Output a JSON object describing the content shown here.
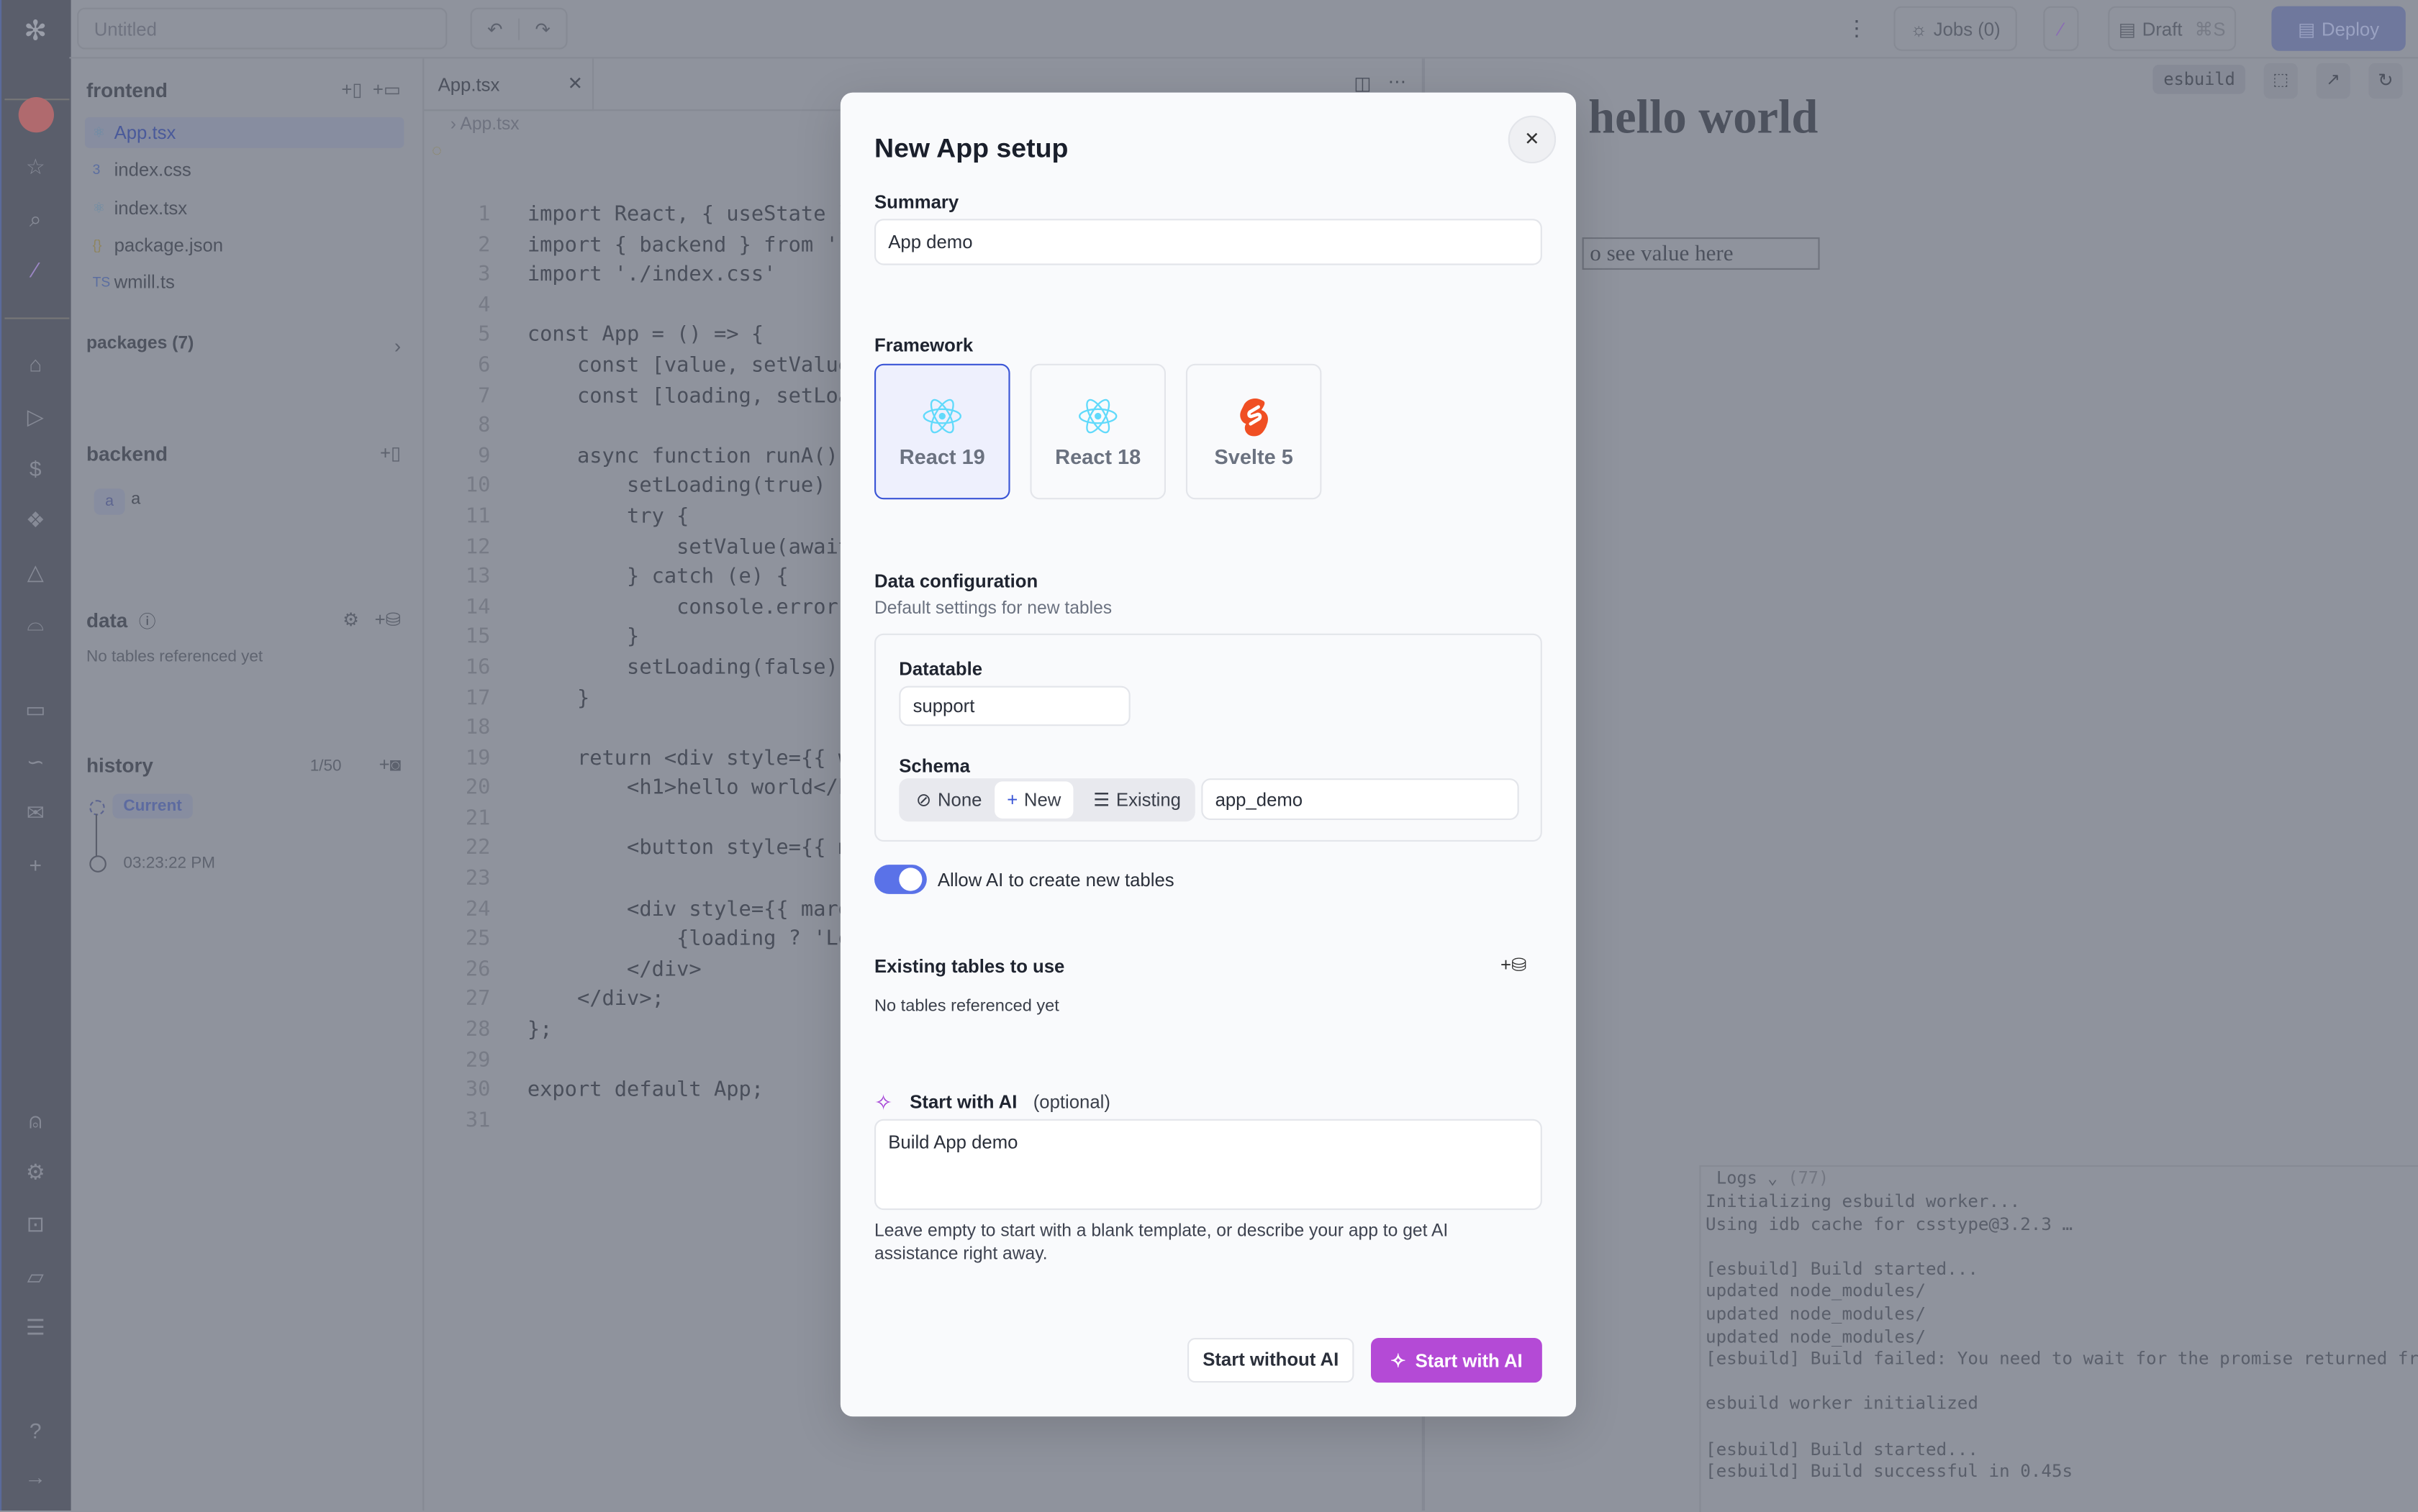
{
  "topbar": {
    "title_placeholder": "Untitled",
    "jobs_label": "Jobs (0)",
    "draft_label": "Draft",
    "draft_shortcut": "⌘S",
    "deploy_label": "Deploy"
  },
  "files": {
    "frontend_title": "frontend",
    "items": [
      {
        "name": "App.tsx",
        "icon": "react-icon",
        "active": true
      },
      {
        "name": "index.css",
        "icon": "css-icon"
      },
      {
        "name": "index.tsx",
        "icon": "react-icon"
      },
      {
        "name": "package.json",
        "icon": "json-icon"
      },
      {
        "name": "wmill.ts",
        "icon": "typescript-icon"
      }
    ],
    "packages_label": "packages (7)",
    "backend_title": "backend",
    "backend_item_badge": "a",
    "backend_item_name": "a",
    "data_title": "data",
    "data_empty": "No tables referenced yet",
    "history_title": "history",
    "history_count": "1/50",
    "history_current": "Current",
    "history_time": "03:23:22 PM"
  },
  "editor": {
    "tab_label": "App.tsx",
    "breadcrumb": "App.tsx",
    "lines": [
      "import React, { useState }",
      "import { backend } from '.",
      "import './index.css'",
      "",
      "const App = () => {",
      "    const [value, setValue",
      "    const [loading, setLoa",
      "",
      "    async function runA()",
      "        setLoading(true)",
      "        try {",
      "            setValue(await",
      "        } catch (e) {",
      "            console.error(",
      "        }",
      "        setLoading(false)",
      "    }",
      "",
      "    return <div style={{ w",
      "        <h1>hello world</h",
      "",
      "        <button style={{ m",
      "",
      "        <div style={{ marg",
      "            {loading ? 'Lo",
      "        </div>",
      "    </div>;",
      "};",
      "",
      "export default App;",
      ""
    ]
  },
  "preview": {
    "bundler_label": "esbuild",
    "heading": "hello world",
    "button_text": "o see value here",
    "logs_label": "Logs",
    "logs_count": "(77)",
    "logs": [
      "Initializing esbuild worker...",
      "Using idb cache for csstype@3.2.3 …",
      "",
      "[esbuild] Build started...",
      "updated node_modules/",
      "updated node_modules/",
      "updated node_modules/",
      "[esbuild] Build failed: You need to wait for the promise returned fr",
      "",
      "esbuild worker initialized",
      "",
      "[esbuild] Build started...",
      "[esbuild] Build successful in 0.45s"
    ]
  },
  "modal": {
    "title": "New App setup",
    "summary_label": "Summary",
    "summary_value": "App demo",
    "framework_label": "Framework",
    "frameworks": [
      {
        "name": "React 19",
        "icon": "react-icon",
        "selected": true
      },
      {
        "name": "React 18",
        "icon": "react-icon",
        "selected": false
      },
      {
        "name": "Svelte 5",
        "icon": "svelte-icon",
        "selected": false
      }
    ],
    "data_config_title": "Data configuration",
    "data_config_subtitle": "Default settings for new tables",
    "datatable_label": "Datatable",
    "datatable_value": "support",
    "schema_label": "Schema",
    "schema_options": [
      "None",
      "New",
      "Existing"
    ],
    "schema_selected": "New",
    "schema_value": "app_demo",
    "allow_ai_label": "Allow AI to create new tables",
    "allow_ai_enabled": true,
    "existing_tables_title": "Existing tables to use",
    "existing_tables_empty": "No tables referenced yet",
    "ai_title": "Start with AI",
    "ai_optional": "(optional)",
    "ai_prompt": "Build App demo",
    "ai_help": "Leave empty to start with a blank template, or describe your app to get AI assistance right away.",
    "start_without_ai": "Start without AI",
    "start_with_ai": "Start with AI"
  },
  "colors": {
    "accent": "#3a55d6",
    "ai_purple": "#b44ad6",
    "svelte": "#f04f23",
    "react": "#61dafb"
  }
}
